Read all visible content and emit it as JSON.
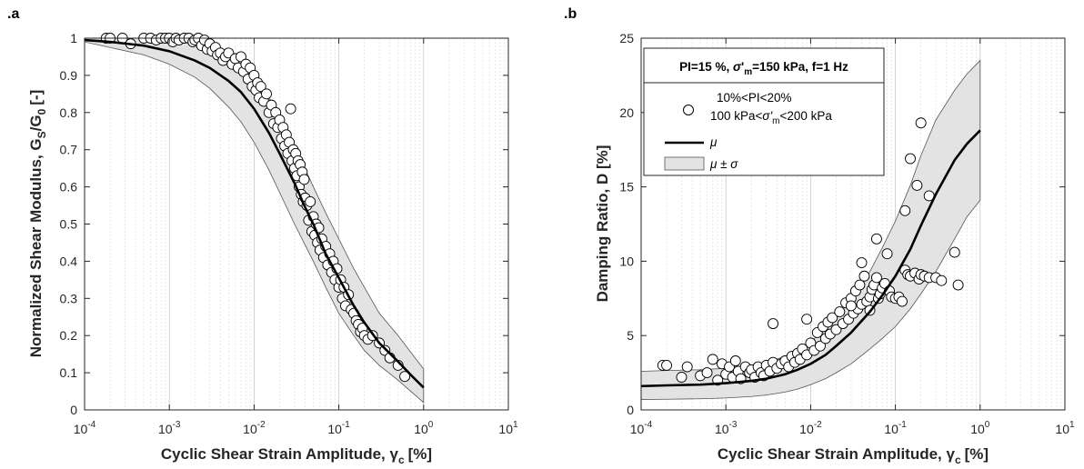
{
  "chart_data": [
    {
      "type": "scatter",
      "panel_label": ".a",
      "xlabel": "Cyclic Shear Strain Amplitude, γ",
      "xlabel_sub": "c",
      "xlabel_unit": "[%]",
      "ylabel": "Normalized Shear Modulus, G",
      "ylabel_sub1": "S",
      "ylabel_mid": "/G",
      "ylabel_sub2": "0",
      "ylabel_unit": "[-]",
      "xscale": "log",
      "xlim": [
        0.0001,
        10
      ],
      "ylim": [
        0,
        1
      ],
      "xtick_exponents": [
        "-4",
        "-3",
        "-2",
        "-1",
        "0",
        "1"
      ],
      "xtick_base": "10",
      "yticks": [
        "0",
        "0.1",
        "0.2",
        "0.3",
        "0.4",
        "0.5",
        "0.6",
        "0.7",
        "0.8",
        "0.9",
        "1"
      ],
      "grid": "x-minor",
      "mean_curve": {
        "x": [
          0.0001,
          0.0002,
          0.0005,
          0.001,
          0.002,
          0.003,
          0.005,
          0.007,
          0.01,
          0.015,
          0.02,
          0.03,
          0.04,
          0.05,
          0.07,
          0.1,
          0.15,
          0.2,
          0.3,
          0.5,
          0.7,
          1
        ],
        "y": [
          0.995,
          0.99,
          0.98,
          0.965,
          0.94,
          0.92,
          0.885,
          0.855,
          0.81,
          0.745,
          0.69,
          0.61,
          0.545,
          0.5,
          0.42,
          0.355,
          0.28,
          0.235,
          0.18,
          0.13,
          0.095,
          0.06
        ]
      },
      "band": {
        "x": [
          0.0001,
          0.0002,
          0.0005,
          0.001,
          0.002,
          0.003,
          0.005,
          0.007,
          0.01,
          0.015,
          0.02,
          0.03,
          0.05,
          0.07,
          0.1,
          0.15,
          0.2,
          0.3,
          0.5,
          1
        ],
        "upper": [
          1.0,
          1.0,
          1.0,
          0.995,
          0.985,
          0.975,
          0.955,
          0.93,
          0.9,
          0.84,
          0.79,
          0.71,
          0.6,
          0.53,
          0.46,
          0.38,
          0.33,
          0.26,
          0.2,
          0.11
        ],
        "lower": [
          0.99,
          0.975,
          0.955,
          0.93,
          0.895,
          0.865,
          0.815,
          0.775,
          0.72,
          0.645,
          0.585,
          0.5,
          0.4,
          0.33,
          0.26,
          0.2,
          0.16,
          0.12,
          0.08,
          0.02
        ]
      },
      "points": {
        "x": [
          0.00018,
          0.0002,
          0.00028,
          0.00035,
          0.0005,
          0.0006,
          0.0007,
          0.0008,
          0.0009,
          0.001,
          0.0011,
          0.0012,
          0.0013,
          0.0015,
          0.0017,
          0.0019,
          0.002,
          0.0022,
          0.0024,
          0.0026,
          0.0028,
          0.003,
          0.0032,
          0.0035,
          0.0037,
          0.004,
          0.0043,
          0.0046,
          0.005,
          0.0055,
          0.006,
          0.0065,
          0.007,
          0.0075,
          0.008,
          0.0085,
          0.009,
          0.0095,
          0.01,
          0.0105,
          0.011,
          0.0115,
          0.012,
          0.013,
          0.014,
          0.015,
          0.016,
          0.017,
          0.018,
          0.019,
          0.02,
          0.021,
          0.022,
          0.023,
          0.024,
          0.025,
          0.026,
          0.027,
          0.028,
          0.029,
          0.03,
          0.031,
          0.032,
          0.033,
          0.034,
          0.035,
          0.036,
          0.037,
          0.038,
          0.039,
          0.04,
          0.042,
          0.044,
          0.046,
          0.048,
          0.05,
          0.052,
          0.054,
          0.056,
          0.058,
          0.06,
          0.063,
          0.066,
          0.07,
          0.074,
          0.078,
          0.082,
          0.086,
          0.09,
          0.095,
          0.1,
          0.105,
          0.11,
          0.115,
          0.12,
          0.13,
          0.14,
          0.15,
          0.16,
          0.17,
          0.18,
          0.19,
          0.2,
          0.22,
          0.25,
          0.3,
          0.35,
          0.4,
          0.5,
          0.6
        ],
        "y": [
          1.0,
          1.0,
          1.0,
          0.985,
          1.0,
          1.0,
          0.995,
          1.0,
          1.0,
          1.0,
          0.99,
          1.0,
          0.995,
          1.0,
          1.0,
          0.99,
          0.995,
          1.0,
          0.98,
          0.995,
          0.97,
          0.985,
          0.965,
          0.975,
          0.955,
          0.96,
          0.94,
          0.95,
          0.96,
          0.93,
          0.945,
          0.92,
          0.95,
          0.91,
          0.93,
          0.89,
          0.92,
          0.87,
          0.9,
          0.86,
          0.88,
          0.84,
          0.87,
          0.83,
          0.85,
          0.8,
          0.82,
          0.77,
          0.8,
          0.76,
          0.78,
          0.73,
          0.76,
          0.71,
          0.74,
          0.69,
          0.72,
          0.81,
          0.67,
          0.7,
          0.65,
          0.69,
          0.63,
          0.67,
          0.6,
          0.66,
          0.58,
          0.64,
          0.56,
          0.62,
          0.57,
          0.55,
          0.51,
          0.56,
          0.48,
          0.52,
          0.47,
          0.5,
          0.45,
          0.49,
          0.43,
          0.46,
          0.41,
          0.44,
          0.39,
          0.42,
          0.37,
          0.4,
          0.35,
          0.38,
          0.33,
          0.35,
          0.3,
          0.33,
          0.28,
          0.31,
          0.27,
          0.26,
          0.24,
          0.23,
          0.21,
          0.22,
          0.2,
          0.19,
          0.2,
          0.18,
          0.16,
          0.14,
          0.12,
          0.09
        ]
      }
    },
    {
      "type": "scatter",
      "panel_label": ".b",
      "xlabel": "Cyclic Shear Strain Amplitude, γ",
      "xlabel_sub": "c",
      "xlabel_unit": "[%]",
      "ylabel": "Damping Ratio, D [%]",
      "xscale": "log",
      "xlim": [
        0.0001,
        10
      ],
      "ylim": [
        0,
        25
      ],
      "xtick_exponents": [
        "-4",
        "-3",
        "-2",
        "-1",
        "0",
        "1"
      ],
      "xtick_base": "10",
      "yticks": [
        "0",
        "5",
        "10",
        "15",
        "20",
        "25"
      ],
      "grid": "x-minor",
      "legend": {
        "position": "top-left",
        "header_a": "PI=15 %, ",
        "header_sigma": "σ",
        "header_prime": "'",
        "header_sub": "m",
        "header_b": "=150 kPa, f=1 Hz",
        "data_line1": "10%<PI<20%",
        "data_line2a": "100 kPa<",
        "data_line2_sigma": "σ'",
        "data_line2_sub": "m",
        "data_line2b": "<200 kPa",
        "mean_label": "μ",
        "band_label": "μ ± σ"
      },
      "mean_curve": {
        "x": [
          0.0001,
          0.0002,
          0.0005,
          0.001,
          0.002,
          0.003,
          0.005,
          0.007,
          0.01,
          0.015,
          0.02,
          0.03,
          0.05,
          0.07,
          0.1,
          0.15,
          0.2,
          0.3,
          0.5,
          0.7,
          1
        ],
        "y": [
          1.6,
          1.65,
          1.7,
          1.8,
          1.95,
          2.1,
          2.4,
          2.7,
          3.1,
          3.7,
          4.3,
          5.2,
          6.6,
          7.7,
          9.0,
          10.8,
          12.4,
          14.5,
          16.8,
          17.9,
          18.8
        ]
      },
      "band": {
        "x": [
          0.0001,
          0.0002,
          0.0005,
          0.001,
          0.002,
          0.003,
          0.005,
          0.007,
          0.01,
          0.015,
          0.02,
          0.03,
          0.05,
          0.07,
          0.1,
          0.15,
          0.2,
          0.3,
          0.5,
          0.7,
          1
        ],
        "upper": [
          2.6,
          2.65,
          2.7,
          2.8,
          3.0,
          3.2,
          3.6,
          4.0,
          4.6,
          5.4,
          6.2,
          7.4,
          9.3,
          10.9,
          12.7,
          15.1,
          17.1,
          19.5,
          21.5,
          22.6,
          23.5
        ],
        "lower": [
          0.7,
          0.72,
          0.75,
          0.8,
          0.9,
          1.0,
          1.2,
          1.4,
          1.7,
          2.1,
          2.5,
          3.1,
          4.1,
          4.8,
          5.6,
          6.8,
          7.8,
          9.3,
          11.5,
          13.0,
          14.1
        ]
      },
      "points": {
        "x": [
          0.00018,
          0.0002,
          0.0003,
          0.00035,
          0.0005,
          0.0006,
          0.0007,
          0.0008,
          0.0009,
          0.001,
          0.0011,
          0.0012,
          0.0013,
          0.0014,
          0.0015,
          0.0017,
          0.0019,
          0.002,
          0.0022,
          0.0024,
          0.0026,
          0.0028,
          0.003,
          0.0033,
          0.0036,
          0.004,
          0.0045,
          0.005,
          0.0055,
          0.006,
          0.0065,
          0.007,
          0.0075,
          0.008,
          0.009,
          0.01,
          0.011,
          0.012,
          0.013,
          0.014,
          0.015,
          0.016,
          0.017,
          0.018,
          0.02,
          0.022,
          0.024,
          0.026,
          0.028,
          0.03,
          0.032,
          0.034,
          0.036,
          0.038,
          0.04,
          0.043,
          0.046,
          0.05,
          0.053,
          0.056,
          0.06,
          0.063,
          0.066,
          0.07,
          0.075,
          0.08,
          0.085,
          0.09,
          0.1,
          0.11,
          0.12,
          0.13,
          0.14,
          0.15,
          0.17,
          0.19,
          0.2,
          0.22,
          0.25,
          0.3,
          0.35,
          0.5,
          0.55,
          0.0036,
          0.009,
          0.04,
          0.03,
          0.05,
          0.06,
          0.13,
          0.15,
          0.18,
          0.2,
          0.25
        ],
        "y": [
          3.0,
          3.0,
          2.2,
          2.9,
          2.3,
          2.5,
          3.4,
          2.0,
          3.1,
          2.4,
          2.9,
          2.2,
          3.3,
          2.6,
          2.1,
          2.9,
          2.5,
          2.7,
          2.2,
          2.9,
          2.5,
          2.3,
          3.0,
          2.6,
          3.2,
          2.8,
          3.1,
          3.3,
          2.9,
          3.6,
          3.2,
          3.8,
          3.4,
          4.1,
          3.7,
          4.5,
          4.0,
          5.2,
          4.3,
          5.6,
          4.8,
          5.9,
          5.1,
          6.2,
          5.4,
          6.6,
          5.8,
          7.2,
          6.1,
          7.5,
          6.5,
          8.0,
          6.8,
          8.4,
          7.1,
          9.0,
          7.3,
          7.6,
          8.1,
          8.4,
          8.9,
          7.5,
          7.8,
          8.2,
          8.5,
          10.5,
          8.0,
          7.6,
          7.5,
          7.6,
          7.3,
          9.4,
          9.1,
          9.0,
          9.2,
          8.8,
          9.1,
          9.0,
          8.9,
          8.9,
          8.7,
          10.6,
          8.4,
          5.8,
          6.1,
          9.9,
          7.0,
          6.7,
          11.5,
          13.4,
          16.9,
          15.1,
          19.3,
          14.4
        ]
      }
    }
  ]
}
